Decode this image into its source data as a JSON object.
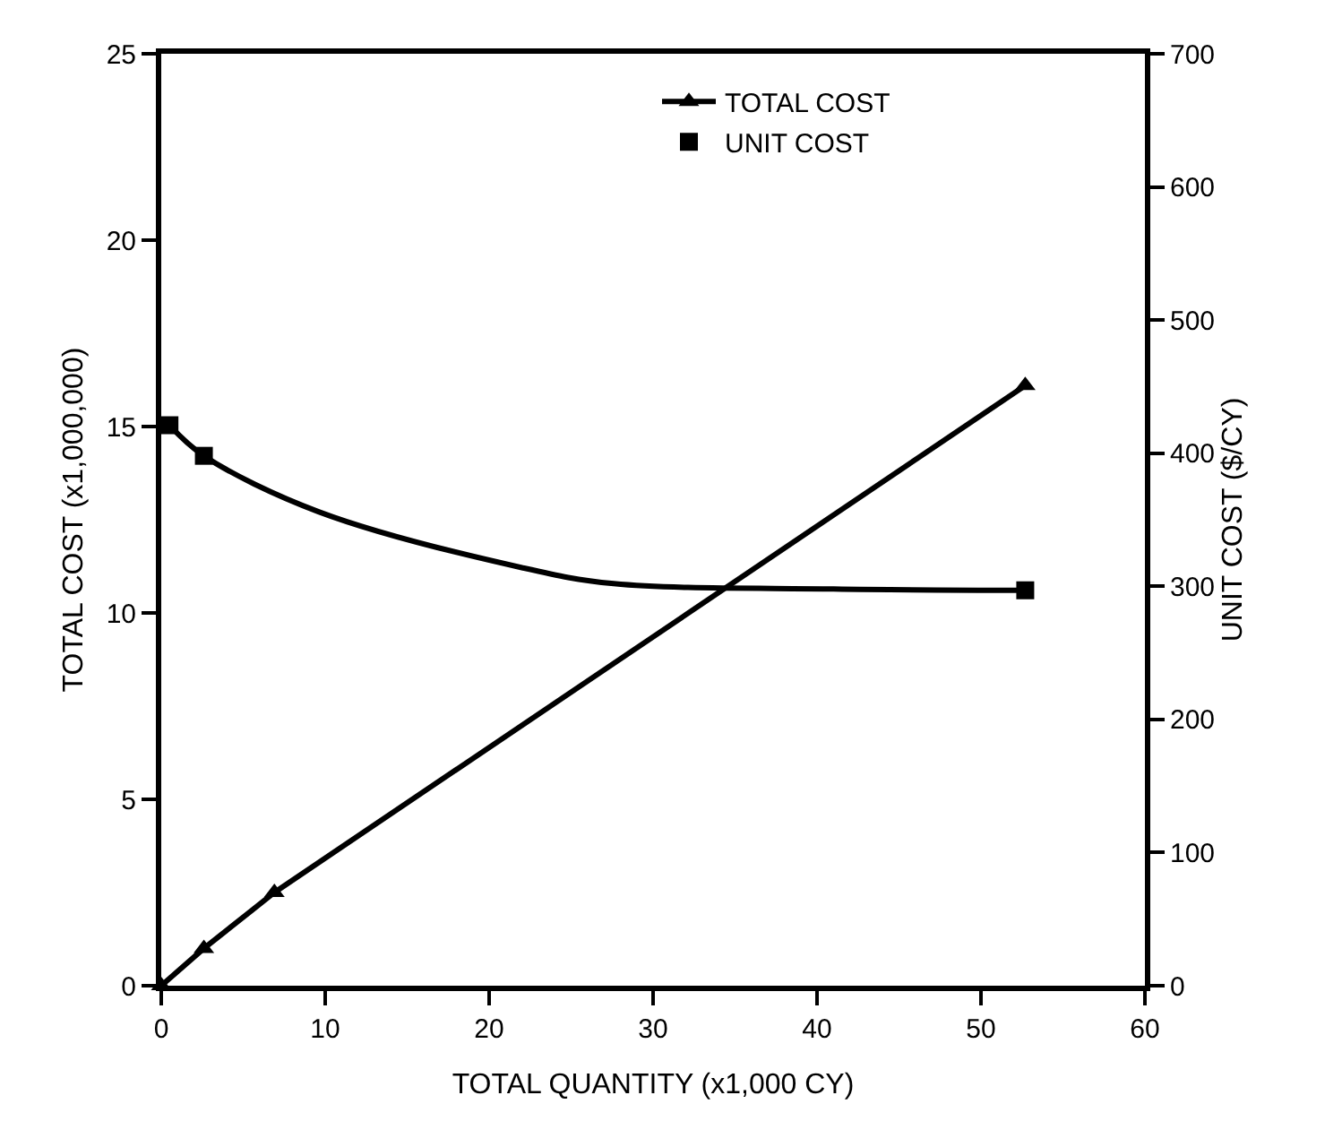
{
  "chart_data": {
    "type": "line",
    "xlabel": "TOTAL QUANTITY (x1,000 CY)",
    "ylabel": "TOTAL COST (x1,000,000)",
    "y2label": "UNIT COST ($/CY)",
    "xlim": [
      0,
      60
    ],
    "xticks": [
      0,
      10,
      20,
      30,
      40,
      50,
      60
    ],
    "ylim": [
      0,
      25
    ],
    "yticks": [
      0,
      5,
      10,
      15,
      20,
      25
    ],
    "y2lim": [
      0,
      700
    ],
    "y2ticks": [
      0,
      100,
      200,
      300,
      400,
      500,
      600,
      700
    ],
    "grid": false,
    "legend": "top",
    "line_style": "solid",
    "series": [
      {
        "name": "TOTAL COST",
        "color": "#000000",
        "marker": "triangle",
        "x": [
          0,
          2.6,
          6.9,
          52.7
        ],
        "values": [
          0,
          1.0,
          2.5,
          16.1
        ]
      },
      {
        "name": "UNIT COST",
        "type": "scatter",
        "color": "#000000",
        "marker": "square",
        "axis": "y2",
        "x": [
          0.5,
          2.6,
          52.7
        ],
        "values": [
          421,
          398,
          297
        ]
      },
      {
        "type": "line",
        "color": "#000000",
        "marker": "none",
        "axis": "y2",
        "x": [
          0.5,
          2.6,
          9.6,
          22,
          27.6,
          41,
          52.7
        ],
        "values": [
          421,
          398,
          356,
          314,
          302,
          298,
          297
        ]
      }
    ]
  }
}
